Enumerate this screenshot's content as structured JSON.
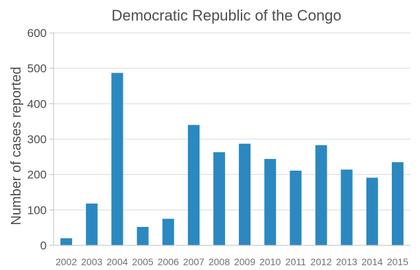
{
  "chart_data": {
    "type": "bar",
    "title": "Democratic Republic of the Congo",
    "xlabel": "",
    "ylabel": "Number of cases reported",
    "categories": [
      "2002",
      "2003",
      "2004",
      "2005",
      "2006",
      "2007",
      "2008",
      "2009",
      "2010",
      "2011",
      "2012",
      "2013",
      "2014",
      "2015"
    ],
    "values": [
      20,
      118,
      487,
      52,
      75,
      340,
      263,
      287,
      244,
      211,
      283,
      214,
      191,
      235
    ],
    "ylim": [
      0,
      600
    ],
    "yticks": [
      0,
      100,
      200,
      300,
      400,
      500,
      600
    ],
    "grid": true,
    "legend": "none",
    "bar_color": "#2b88c0"
  }
}
